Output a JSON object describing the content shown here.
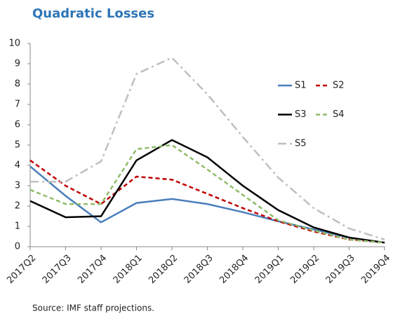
{
  "chart_data": {
    "type": "line",
    "title": "Quadratic Losses",
    "source": "Source: IMF staff projections.",
    "categories": [
      "2017Q2",
      "2017Q3",
      "2017Q4",
      "2018Q1",
      "2018Q2",
      "2018Q3",
      "2018Q4",
      "2019Q1",
      "2019Q2",
      "2019Q3",
      "2019Q4"
    ],
    "series": [
      {
        "name": "S1",
        "color": "#4a7ebb",
        "style": "solid",
        "values": [
          3.95,
          2.5,
          1.2,
          2.15,
          2.35,
          2.1,
          1.7,
          1.25,
          0.85,
          0.45,
          0.2
        ]
      },
      {
        "name": "S2",
        "color": "#c00000",
        "style": "dashed",
        "values": [
          4.25,
          3.0,
          2.1,
          3.45,
          3.3,
          2.6,
          1.9,
          1.25,
          0.75,
          0.35,
          0.2
        ]
      },
      {
        "name": "S3",
        "color": "#000000",
        "style": "solid",
        "values": [
          2.25,
          1.45,
          1.5,
          4.25,
          5.25,
          4.4,
          3.0,
          1.8,
          0.95,
          0.45,
          0.2
        ]
      },
      {
        "name": "S4",
        "color": "#8fbc6a",
        "style": "dashed",
        "values": [
          2.8,
          2.1,
          2.1,
          4.8,
          5.0,
          3.8,
          2.55,
          1.3,
          0.8,
          0.35,
          0.2
        ]
      },
      {
        "name": "S5",
        "color": "#bfbfbf",
        "style": "dashdot",
        "values": [
          3.2,
          3.2,
          4.2,
          8.5,
          9.3,
          7.5,
          5.4,
          3.4,
          1.9,
          0.9,
          0.35
        ]
      }
    ],
    "ylim": [
      0,
      10
    ],
    "yticks": [
      0,
      1,
      2,
      3,
      4,
      5,
      6,
      7,
      8,
      9,
      10
    ]
  }
}
